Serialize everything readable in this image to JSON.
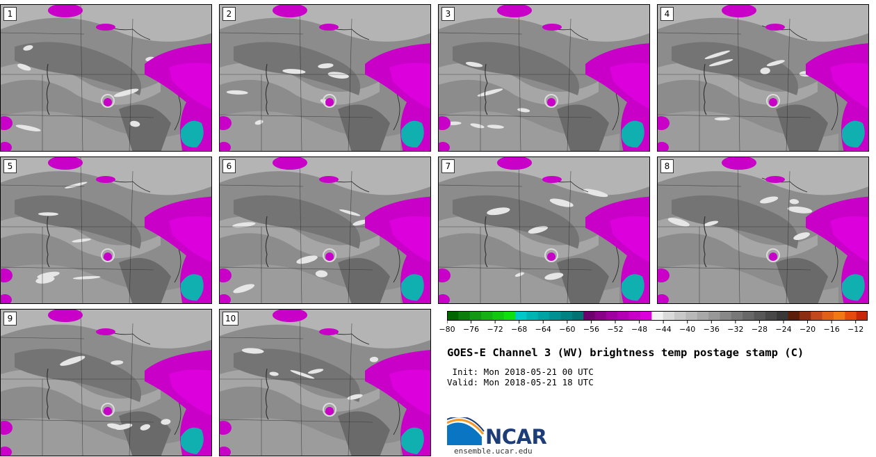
{
  "panels": [
    {
      "label": "1"
    },
    {
      "label": "2"
    },
    {
      "label": "3"
    },
    {
      "label": "4"
    },
    {
      "label": "5"
    },
    {
      "label": "6"
    },
    {
      "label": "7"
    },
    {
      "label": "8"
    },
    {
      "label": "9"
    },
    {
      "label": "10"
    }
  ],
  "colorbar": {
    "min": -80,
    "max": -10,
    "step": 2,
    "tick_labels": [
      "−80",
      "−76",
      "−72",
      "−68",
      "−64",
      "−60",
      "−56",
      "−52",
      "−48",
      "−44",
      "−40",
      "−36",
      "−32",
      "−28",
      "−24",
      "−20",
      "−16",
      "−12"
    ],
    "tick_values": [
      -80,
      -76,
      -72,
      -68,
      -64,
      -60,
      -56,
      -52,
      -48,
      -44,
      -40,
      -36,
      -32,
      -28,
      -24,
      -20,
      -16,
      -12
    ],
    "colors": [
      "#006600",
      "#0a7d0a",
      "#129812",
      "#14b014",
      "#10c810",
      "#0ee00e",
      "#00c8c8",
      "#00b4b4",
      "#00a3a3",
      "#009292",
      "#008282",
      "#007272",
      "#6e006e",
      "#880088",
      "#a000a0",
      "#b400b4",
      "#c800c8",
      "#dc00dc",
      "#f2f2f2",
      "#dadada",
      "#c8c8c8",
      "#b8b8b8",
      "#a8a8a8",
      "#989898",
      "#888888",
      "#787878",
      "#686868",
      "#585858",
      "#484848",
      "#383838",
      "#5a1e0a",
      "#8c2d12",
      "#c2481c",
      "#e06018",
      "#f27814",
      "#e64a0f",
      "#c8280a"
    ]
  },
  "title": "GOES-E Channel 3 (WV) brightness temp postage stamp (C)",
  "init": " Init: Mon 2018-05-21 00 UTC",
  "valid": "Valid: Mon 2018-05-21 18 UTC",
  "logo": {
    "text": "NCAR",
    "url": "ensemble.ucar.edu"
  }
}
